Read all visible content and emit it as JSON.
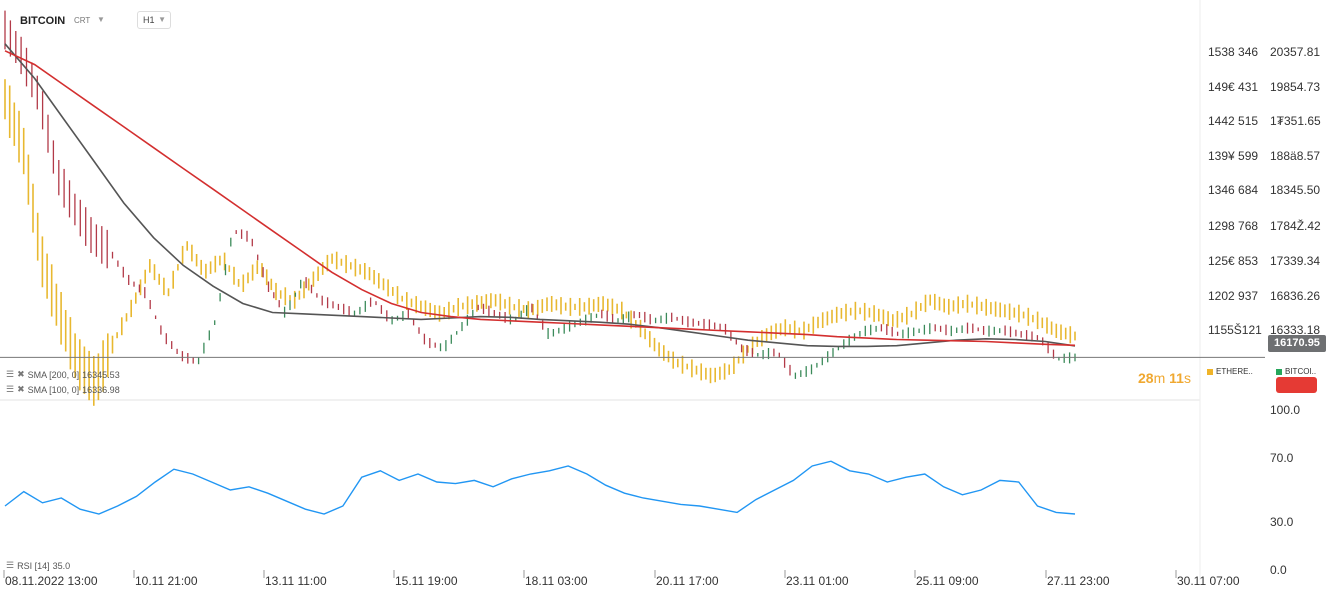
{
  "header": {
    "symbol": "BITCOIN",
    "chart_type": "CRT",
    "interval": "H1"
  },
  "indicators": {
    "sma200": {
      "label": "SMA [200, 0]",
      "value": "16345.53",
      "color": "#d32f2f"
    },
    "sma100": {
      "label": "SMA [100, 0]",
      "value": "16336.98",
      "color": "#555555"
    },
    "rsi": {
      "label": "RSI [14]",
      "value": "35.0",
      "color": "#2196f3"
    }
  },
  "last_price": "16170.95",
  "timer": {
    "minutes": "28",
    "m": "m",
    "seconds": "11",
    "s": "s"
  },
  "legend": [
    {
      "name": "ETHERE..",
      "color": "#f0b429"
    },
    {
      "name": "BITCOI..",
      "color": "#26a65b"
    }
  ],
  "colors": {
    "eth": "#e8b830",
    "btc_up": "#3b8a5a",
    "btc_down": "#b23a48",
    "sma200": "#d32f2f",
    "sma100": "#555555",
    "rsi": "#2196f3"
  },
  "chart_data": [
    {
      "type": "line",
      "x_ticks": [
        "08.11.2022 13:00",
        "10.11 21:00",
        "13.11 11:00",
        "15.11 19:00",
        "18.11 03:00",
        "20.11 17:00",
        "23.11 01:00",
        "25.11 09:00",
        "27.11 23:00",
        "30.11 07:00"
      ],
      "y_left_ticks": [
        "1538 346",
        "149€ 431",
        "1442 515",
        "139¥ 599",
        "1346 684",
        "1298 768",
        "125€ 853",
        "1202 937",
        "1155Š121"
      ],
      "y_right_ticks": [
        "20357.81",
        "19854.73",
        "1₮351.65",
        "188ä8.57",
        "18345.50",
        "1784Ž.42",
        "17339.34",
        "16836.26",
        "16333.18"
      ],
      "series": [
        {
          "name": "BITCOIN",
          "values": [
            20900,
            20500,
            19900,
            18800,
            18300,
            17900,
            17700,
            17300,
            17100,
            16500,
            16200,
            16100,
            16700,
            18000,
            17900,
            17200,
            16800,
            17300,
            17000,
            16900,
            16800,
            17000,
            16700,
            16800,
            16400,
            16300,
            16600,
            16900,
            16800,
            16700,
            16900,
            16500,
            16600,
            16700,
            16800,
            16700,
            16800,
            16700,
            16750,
            16680,
            16650,
            16600,
            16300,
            16200,
            16250,
            15900,
            16000,
            16200,
            16400,
            16550,
            16600,
            16500,
            16550,
            16600,
            16550,
            16600,
            16550,
            16560,
            16500,
            16450,
            16150,
            16170
          ]
        },
        {
          "name": "ETHEREUM",
          "values": [
            19900,
            19200,
            17600,
            16800,
            16100,
            15800,
            16400,
            16900,
            17500,
            17100,
            17800,
            17400,
            17600,
            17200,
            17500,
            17100,
            17000,
            17300,
            17600,
            17500,
            17400,
            17200,
            17000,
            16900,
            16800,
            16900,
            16950,
            17000,
            16900,
            16850,
            16950,
            16900,
            16900,
            16950,
            16850,
            16600,
            16300,
            16100,
            16000,
            15900,
            16000,
            16300,
            16500,
            16600,
            16550,
            16700,
            16800,
            16850,
            16800,
            16700,
            16800,
            17000,
            16900,
            16950,
            16900,
            16850,
            16800,
            16700,
            16550,
            16480
          ]
        },
        {
          "name": "SMA [200, 0]",
          "values": [
            20600,
            20400,
            20100,
            19800,
            19500,
            19200,
            18900,
            18600,
            18300,
            18000,
            17700,
            17400,
            17150,
            16950,
            16820,
            16760,
            16720,
            16700,
            16680,
            16660,
            16640,
            16620,
            16600,
            16580,
            16560,
            16540,
            16520,
            16500,
            16470,
            16450,
            16430,
            16420,
            16410,
            16400,
            16380,
            16360,
            16345
          ]
        },
        {
          "name": "SMA [100, 0]",
          "values": [
            20700,
            20200,
            19600,
            19000,
            18400,
            17900,
            17500,
            17200,
            16950,
            16820,
            16800,
            16780,
            16760,
            16740,
            16720,
            16740,
            16760,
            16750,
            16720,
            16700,
            16680,
            16650,
            16600,
            16540,
            16480,
            16420,
            16380,
            16340,
            16330,
            16330,
            16340,
            16380,
            16420,
            16440,
            16430,
            16400,
            16337
          ]
        },
        {
          "name": "RSI [14]",
          "values": [
            40,
            49,
            42,
            45,
            38,
            35,
            40,
            46,
            55,
            63,
            60,
            55,
            50,
            52,
            48,
            43,
            38,
            35,
            40,
            58,
            62,
            56,
            60,
            55,
            54,
            56,
            52,
            57,
            60,
            62,
            65,
            60,
            53,
            48,
            45,
            43,
            41,
            40,
            38,
            36,
            44,
            50,
            56,
            65,
            68,
            62,
            60,
            55,
            58,
            60,
            52,
            47,
            50,
            56,
            55,
            40,
            36,
            35
          ]
        }
      ]
    }
  ]
}
